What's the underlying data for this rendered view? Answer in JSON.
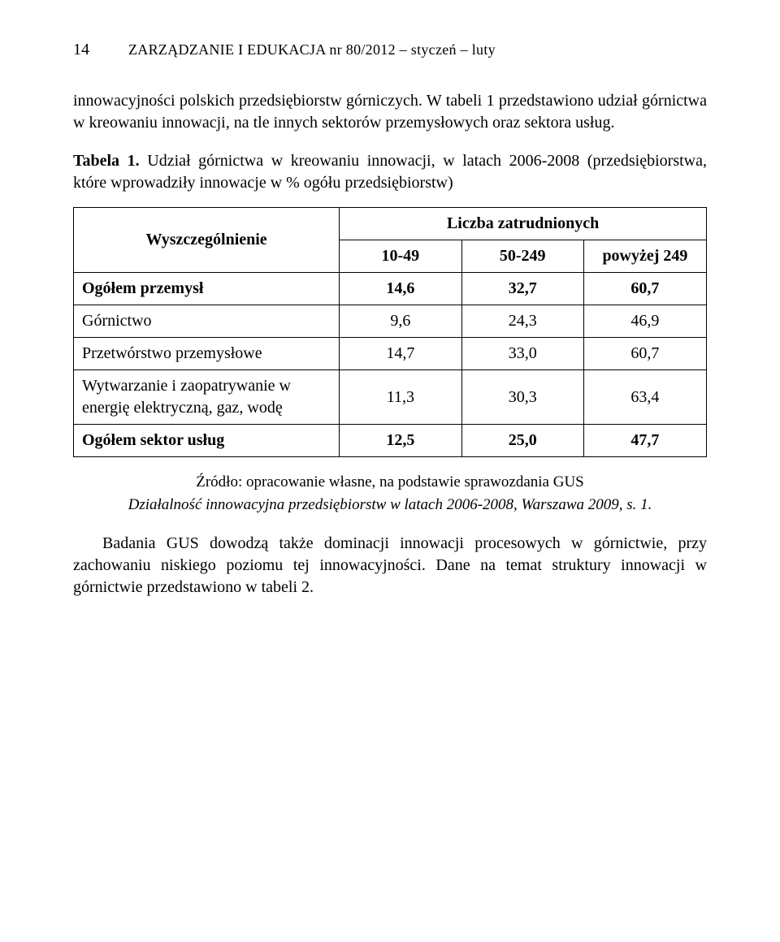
{
  "header": {
    "page_number": "14",
    "running_title": "ZARZĄDZANIE I EDUKACJA nr 80/2012 – styczeń – luty"
  },
  "intro_paragraph": "innowacyjności polskich przedsiębiorstw górniczych. W tabeli 1 przedstawiono udział górnictwa w kreowaniu innowacji, na tle innych sektorów przemysłowych oraz sektora usług.",
  "table_caption": {
    "label": "Tabela 1.",
    "text": " Udział górnictwa w kreowaniu innowacji, w latach 2006-2008 (przedsiębiorstwa, które wprowadziły innowacje w % ogółu przedsiębiorstw)"
  },
  "table": {
    "col_header_left": "Wyszczególnienie",
    "col_header_group": "Liczba zatrudnionych",
    "sub_headers": [
      "10-49",
      "50-249",
      "powyżej 249"
    ],
    "rows": [
      {
        "label": "Ogółem przemysł",
        "bold": true,
        "values": [
          "14,6",
          "32,7",
          "60,7"
        ]
      },
      {
        "label": "Górnictwo",
        "bold": false,
        "values": [
          "9,6",
          "24,3",
          "46,9"
        ]
      },
      {
        "label": "Przetwórstwo przemysłowe",
        "bold": false,
        "values": [
          "14,7",
          "33,0",
          "60,7"
        ]
      },
      {
        "label": "Wytwarzanie i zaopatrywanie w energię elektryczną, gaz, wodę",
        "bold": false,
        "values": [
          "11,3",
          "30,3",
          "63,4"
        ]
      },
      {
        "label": "Ogółem sektor usług",
        "bold": true,
        "values": [
          "12,5",
          "25,0",
          "47,7"
        ]
      }
    ],
    "col_widths": [
      "42%",
      "19.3%",
      "19.3%",
      "19.4%"
    ]
  },
  "source_line1": "Źródło: opracowanie własne, na podstawie sprawozdania GUS",
  "source_line2": "Działalność innowacyjna przedsiębiorstw w latach 2006-2008, Warszawa 2009, s. 1.",
  "closing_paragraph": "Badania GUS dowodzą także dominacji innowacji procesowych w górnictwie, przy zachowaniu niskiego poziomu tej innowacyjności. Dane na temat struktury innowacji w górnictwie przedstawiono w tabeli 2."
}
